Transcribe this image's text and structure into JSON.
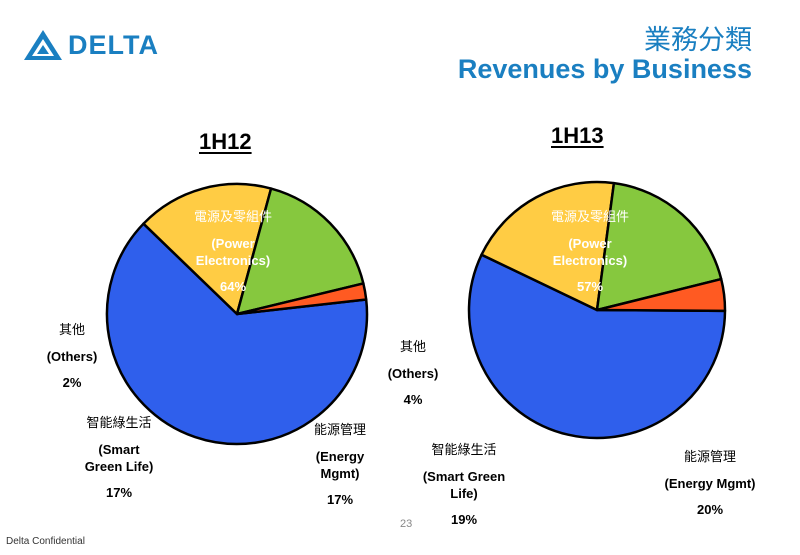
{
  "header": {
    "logo_text": "DELTA",
    "title_zh": "業務分類",
    "title_en": "Revenues by Business"
  },
  "footer": {
    "confidential": "Delta Confidential",
    "page_number": "23"
  },
  "colors": {
    "brand": "#1a7fc1",
    "power": "#2f5fec",
    "energy": "#ffcc44",
    "green": "#86c83e",
    "others": "#ff5a22"
  },
  "chart_data": [
    {
      "type": "pie",
      "title": "1H12",
      "slices": [
        {
          "zh": "電源及零組件",
          "en": [
            "(Power",
            "Electronics)"
          ],
          "pct_label": "64%",
          "value": 64
        },
        {
          "zh": "能源管理",
          "en": [
            "(Energy",
            "Mgmt)"
          ],
          "pct_label": "17%",
          "value": 17
        },
        {
          "zh": "智能綠生活",
          "en": [
            "(Smart",
            "Green Life)"
          ],
          "pct_label": "17%",
          "value": 17
        },
        {
          "zh": "其他",
          "en": [
            "(Others)"
          ],
          "pct_label": "2%",
          "value": 2
        }
      ]
    },
    {
      "type": "pie",
      "title": "1H13",
      "slices": [
        {
          "zh": "電源及零組件",
          "en": [
            "(Power",
            "Electronics)"
          ],
          "pct_label": "57%",
          "value": 57
        },
        {
          "zh": "能源管理",
          "en": [
            "(Energy Mgmt)"
          ],
          "pct_label": "20%",
          "value": 20
        },
        {
          "zh": "智能綠生活",
          "en": [
            "(Smart Green",
            "Life)"
          ],
          "pct_label": "19%",
          "value": 19
        },
        {
          "zh": "其他",
          "en": [
            "(Others)"
          ],
          "pct_label": "4%",
          "value": 4
        }
      ]
    }
  ]
}
